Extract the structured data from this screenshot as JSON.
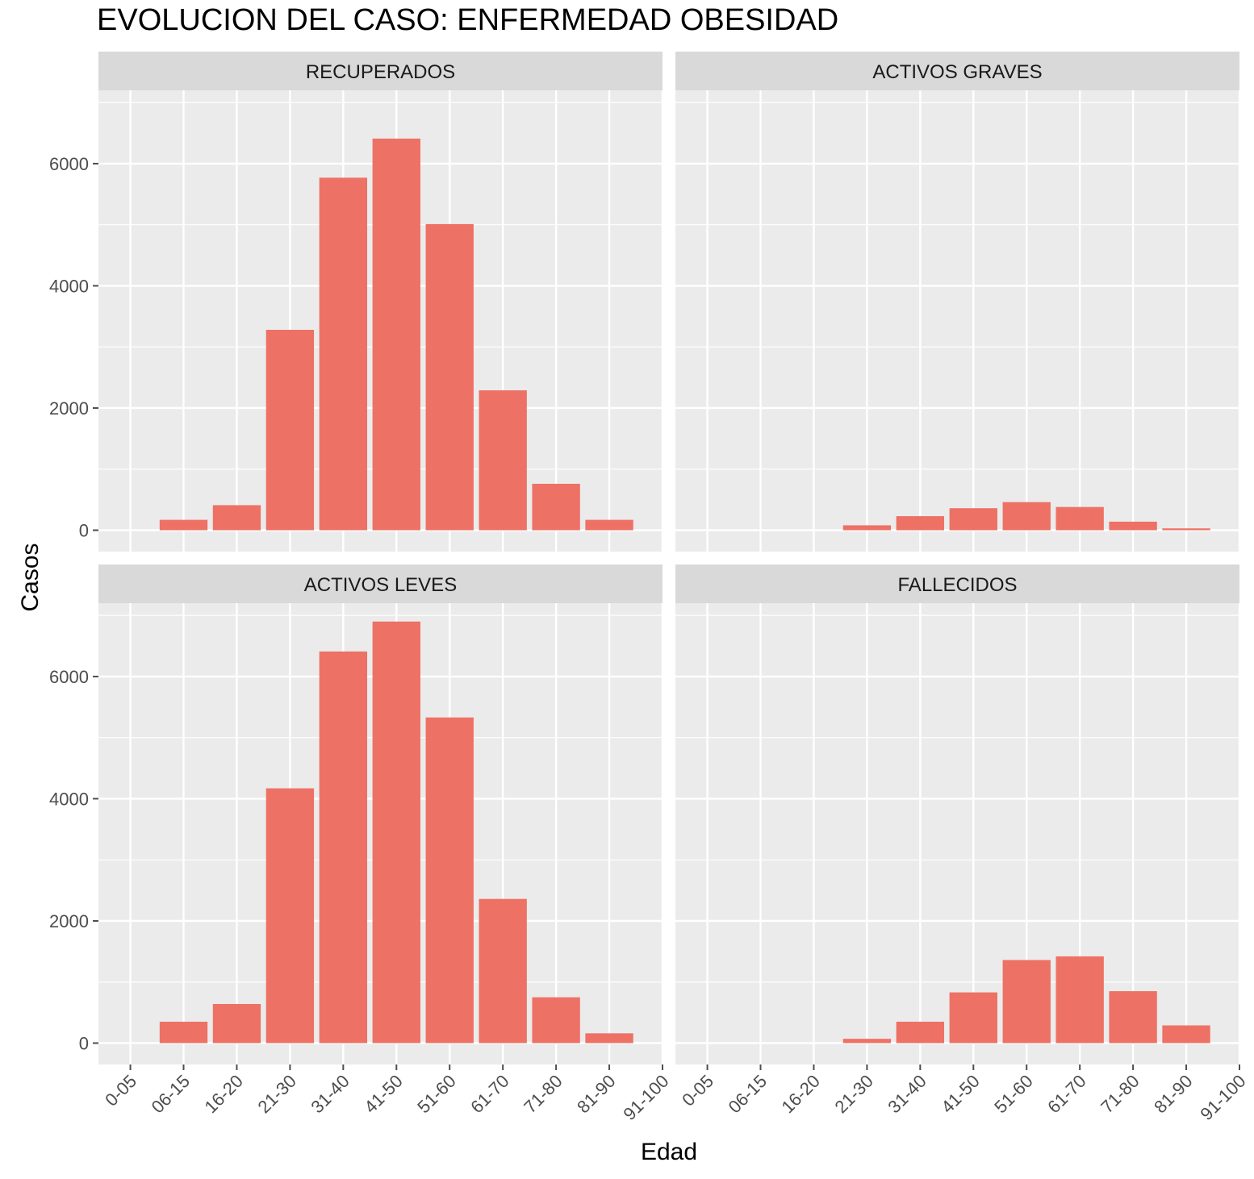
{
  "chart_data": {
    "type": "bar",
    "title": "EVOLUCION DEL CASO: ENFERMEDAD OBESIDAD",
    "xlabel": "Edad",
    "ylabel": "Casos",
    "categories": [
      "0-05",
      "06-15",
      "16-20",
      "21-30",
      "31-40",
      "41-50",
      "51-60",
      "61-70",
      "71-80",
      "81-90",
      "91-100"
    ],
    "y_ticks": [
      0,
      2000,
      4000,
      6000
    ],
    "ylim": [
      -350,
      7200
    ],
    "grid": true,
    "bar_color": "#ED7165",
    "panel_background": "#EBEBEB",
    "strip_background": "#D9D9D9",
    "panels": [
      {
        "name": "RECUPERADOS",
        "values": [
          0,
          170,
          410,
          3280,
          5770,
          6410,
          5010,
          2290,
          760,
          170,
          0
        ]
      },
      {
        "name": "ACTIVOS GRAVES",
        "values": [
          0,
          0,
          0,
          80,
          230,
          360,
          460,
          380,
          140,
          30,
          0
        ]
      },
      {
        "name": "ACTIVOS LEVES",
        "values": [
          0,
          350,
          640,
          4170,
          6410,
          6900,
          5330,
          2360,
          750,
          160,
          0
        ]
      },
      {
        "name": "FALLECIDOS",
        "values": [
          0,
          0,
          0,
          70,
          350,
          830,
          1360,
          1420,
          850,
          290,
          0
        ]
      }
    ]
  }
}
